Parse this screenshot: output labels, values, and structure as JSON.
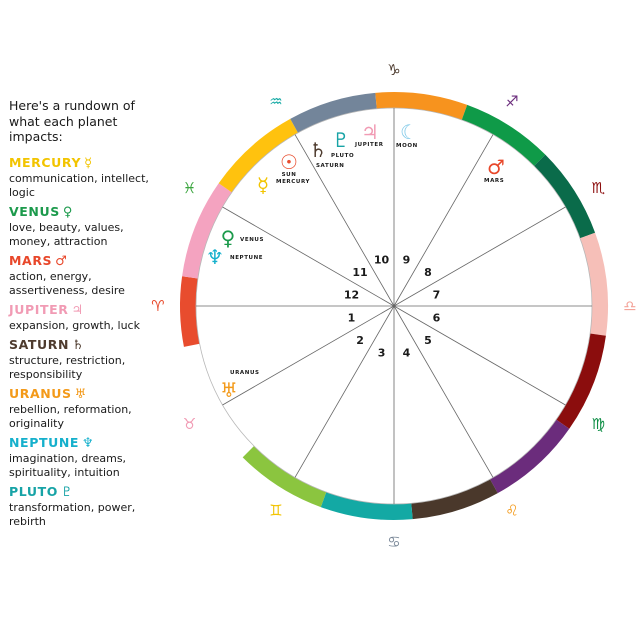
{
  "legend": {
    "intro": "Here's a rundown of what each planet impacts:",
    "planets": [
      {
        "name": "MERCURY",
        "glyph": "☿",
        "desc": "communication, intellect, logic",
        "color": "#f2c400"
      },
      {
        "name": "VENUS",
        "glyph": "♀",
        "desc": "love, beauty, values, money, attraction",
        "color": "#1c9a4c"
      },
      {
        "name": "MARS",
        "glyph": "♂",
        "desc": "action, energy, assertiveness, desire",
        "color": "#e8472a"
      },
      {
        "name": "JUPITER",
        "glyph": "♃",
        "desc": "expansion, growth, luck",
        "color": "#f19bb4"
      },
      {
        "name": "SATURN",
        "glyph": "♄",
        "desc": "structure, restriction, responsibility",
        "color": "#4e3b2e"
      },
      {
        "name": "URANUS",
        "glyph": "♅",
        "desc": "rebellion, reformation, originality",
        "color": "#f39a1a"
      },
      {
        "name": "NEPTUNE",
        "glyph": "♆",
        "desc": "imagination, dreams, spirituality, intuition",
        "color": "#15b0cc"
      },
      {
        "name": "PLUTO",
        "glyph": "♇",
        "desc": "transformation, power, rebirth",
        "color": "#17a3a6"
      }
    ]
  },
  "wheel": {
    "houses": [
      "1",
      "2",
      "3",
      "4",
      "5",
      "6",
      "7",
      "8",
      "9",
      "10",
      "11",
      "12"
    ],
    "ring_colors": [
      "#e84c2e",
      "#f4a3c0",
      "#ffc20e",
      "#73859a",
      "#f7931e",
      "#0f9a48",
      "#0a6b4a",
      "#f6bfb8",
      "#8b0d0d",
      "#6b2c7c",
      "#4a382b",
      "#13a9a4",
      "#8bc53f"
    ],
    "zodiac": [
      {
        "name": "aries-icon",
        "glyph": "♈",
        "color": "#e84c2e"
      },
      {
        "name": "taurus-icon",
        "glyph": "♉",
        "color": "#f19bb4"
      },
      {
        "name": "gemini-icon",
        "glyph": "♊",
        "color": "#f2c400"
      },
      {
        "name": "cancer-icon",
        "glyph": "♋",
        "color": "#7a8898"
      },
      {
        "name": "leo-icon",
        "glyph": "♌",
        "color": "#f39a1a"
      },
      {
        "name": "virgo-icon",
        "glyph": "♍",
        "color": "#0f8e46"
      },
      {
        "name": "libra-icon",
        "glyph": "♎",
        "color": "#f4a49a"
      },
      {
        "name": "scorpio-icon",
        "glyph": "♏",
        "color": "#8b0d0d"
      },
      {
        "name": "sagittarius-icon",
        "glyph": "♐",
        "color": "#6b2c7c"
      },
      {
        "name": "capricorn-icon",
        "glyph": "♑",
        "color": "#4a382b"
      },
      {
        "name": "aquarius-icon",
        "glyph": "♒",
        "color": "#13a9a4"
      },
      {
        "name": "pisces-icon",
        "glyph": "♓",
        "color": "#3aa53e"
      }
    ],
    "placements": [
      {
        "label": "SUN",
        "glyph": "☉",
        "color": "#e84c2e"
      },
      {
        "label": "MERCURY",
        "glyph": "☿",
        "color": "#f2c400"
      },
      {
        "label": "SATURN",
        "glyph": "♄",
        "color": "#4e3b2e"
      },
      {
        "label": "PLUTO",
        "glyph": "♇",
        "color": "#17a3a6"
      },
      {
        "label": "JUPITER",
        "glyph": "♃",
        "color": "#f19bb4"
      },
      {
        "label": "MOON",
        "glyph": "☾",
        "color": "#7ec8e8"
      },
      {
        "label": "MARS",
        "glyph": "♂",
        "color": "#e8472a"
      },
      {
        "label": "VENUS",
        "glyph": "♀",
        "color": "#1c9a4c"
      },
      {
        "label": "NEPTUNE",
        "glyph": "♆",
        "color": "#15b0cc"
      },
      {
        "label": "URANUS",
        "glyph": "♅",
        "color": "#f39a1a"
      }
    ]
  }
}
